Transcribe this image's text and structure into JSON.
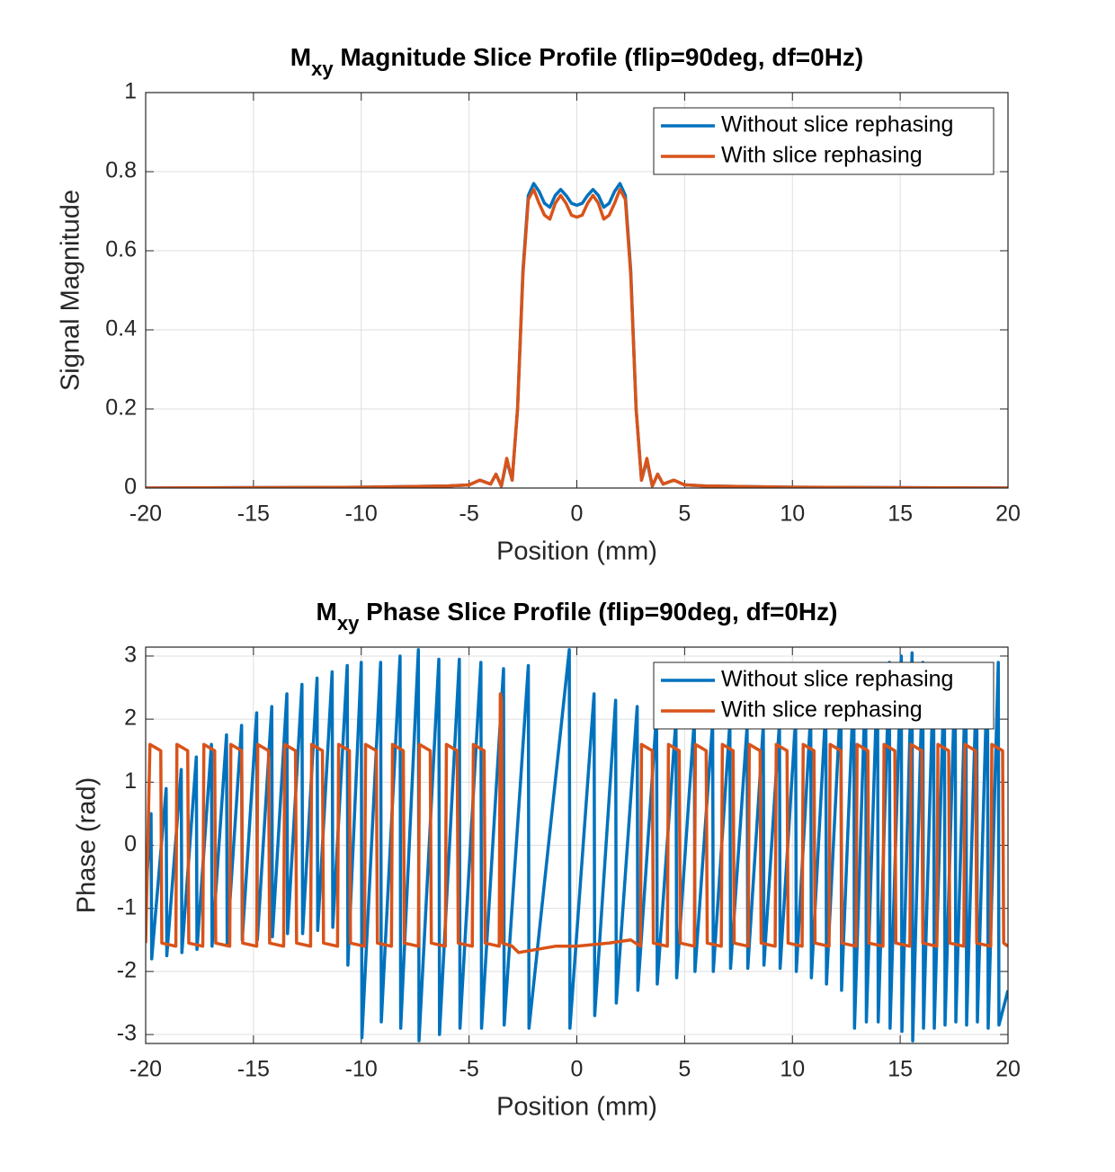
{
  "chart_data": [
    {
      "type": "line",
      "title": {
        "text": "M",
        "sub": "xy",
        "rest": " Magnitude Slice Profile (flip=90deg, df=0Hz)"
      },
      "x_label": "Position (mm)",
      "y_label": "Signal Magnitude",
      "xlim": [
        -20,
        20
      ],
      "ylim": [
        0,
        1
      ],
      "xticks": [
        -20,
        -15,
        -10,
        -5,
        0,
        5,
        10,
        15,
        20
      ],
      "yticks": [
        0,
        0.2,
        0.4,
        0.6,
        0.8,
        1
      ],
      "grid": true,
      "legend": "northeast",
      "x": [
        -20,
        -10,
        -6,
        -5,
        -4.5,
        -4,
        -3.75,
        -3.5,
        -3.25,
        -3,
        -2.75,
        -2.5,
        -2.25,
        -2,
        -1.75,
        -1.5,
        -1.25,
        -1,
        -0.75,
        -0.5,
        -0.25,
        0,
        0.25,
        0.5,
        0.75,
        1,
        1.25,
        1.5,
        1.75,
        2,
        2.25,
        2.5,
        2.75,
        3,
        3.25,
        3.5,
        3.75,
        4,
        4.5,
        5,
        6,
        10,
        20
      ],
      "series": [
        {
          "name": "Without slice rephasing",
          "color": "#0072bd",
          "values": [
            0,
            0.002,
            0.005,
            0.008,
            0.02,
            0.01,
            0.035,
            0.005,
            0.07,
            0.02,
            0.2,
            0.55,
            0.74,
            0.77,
            0.75,
            0.72,
            0.71,
            0.74,
            0.755,
            0.74,
            0.72,
            0.715,
            0.72,
            0.74,
            0.755,
            0.74,
            0.71,
            0.72,
            0.75,
            0.77,
            0.74,
            0.55,
            0.2,
            0.02,
            0.07,
            0.005,
            0.035,
            0.01,
            0.02,
            0.008,
            0.005,
            0.002,
            0
          ]
        },
        {
          "name": "With slice rephasing",
          "color": "#d95319",
          "values": [
            0,
            0.002,
            0.005,
            0.008,
            0.02,
            0.01,
            0.035,
            0.005,
            0.075,
            0.02,
            0.2,
            0.54,
            0.73,
            0.755,
            0.72,
            0.69,
            0.68,
            0.72,
            0.74,
            0.72,
            0.69,
            0.685,
            0.69,
            0.72,
            0.74,
            0.72,
            0.68,
            0.69,
            0.72,
            0.755,
            0.73,
            0.54,
            0.2,
            0.02,
            0.075,
            0.005,
            0.035,
            0.01,
            0.02,
            0.008,
            0.005,
            0.002,
            0
          ]
        }
      ]
    },
    {
      "type": "line",
      "title": {
        "text": "M",
        "sub": "xy",
        "rest": " Phase Slice Profile (flip=90deg, df=0Hz)"
      },
      "x_label": "Position (mm)",
      "y_label": "Phase (rad)",
      "xlim": [
        -20,
        20
      ],
      "ylim": [
        -3.1416,
        3.1416
      ],
      "xticks": [
        -20,
        -15,
        -10,
        -5,
        0,
        5,
        10,
        15,
        20
      ],
      "yticks": [
        -3,
        -2,
        -1,
        0,
        1,
        2,
        3
      ],
      "grid": true,
      "legend": "northeast",
      "series": [
        {
          "name": "Without slice rephasing",
          "color": "#0072bd",
          "x": [
            -20,
            -19.75,
            -19.72,
            -19.05,
            -19.02,
            -18.35,
            -18.32,
            -17.65,
            -17.62,
            -16.95,
            -16.92,
            -16.25,
            -16.22,
            -15.55,
            -15.52,
            -14.85,
            -14.82,
            -14.15,
            -14.12,
            -13.45,
            -13.42,
            -12.75,
            -12.72,
            -12.05,
            -12.02,
            -11.35,
            -11.32,
            -10.65,
            -10.62,
            -10,
            -9.97,
            -9.1,
            -9.07,
            -8.2,
            -8.17,
            -7.35,
            -7.32,
            -6.4,
            -6.37,
            -5.45,
            -5.42,
            -4.45,
            -4.42,
            -3.4,
            -3.37,
            -2.25,
            -2.22,
            -0.35,
            -0.32,
            0.8,
            0.83,
            1.8,
            1.83,
            2.8,
            2.83,
            3.7,
            3.73,
            4.6,
            4.63,
            5.45,
            5.48,
            6.3,
            6.33,
            7.1,
            7.13,
            7.9,
            7.93,
            8.65,
            8.68,
            9.4,
            9.43,
            10.15,
            10.18,
            10.85,
            10.88,
            11.55,
            11.58,
            12.25,
            12.28,
            12.85,
            12.88,
            13.4,
            13.43,
            13.95,
            13.98,
            14.5,
            14.53,
            15.05,
            15.08,
            15.55,
            15.58,
            16.05,
            16.08,
            16.55,
            16.58,
            17.05,
            17.08,
            17.55,
            17.58,
            18.05,
            18.08,
            18.55,
            18.58,
            19.05,
            19.08,
            19.55,
            19.58,
            20
          ],
          "values": [
            -0.8,
            0.5,
            -1.8,
            0.9,
            -1.75,
            1.2,
            -1.7,
            1.4,
            -1.65,
            1.6,
            -1.6,
            1.75,
            -1.55,
            1.9,
            -1.5,
            2.1,
            -1.5,
            2.2,
            -1.45,
            2.4,
            -1.4,
            2.55,
            -1.4,
            2.65,
            -1.35,
            2.75,
            -1.3,
            2.85,
            -1.9,
            2.9,
            -3.05,
            2.9,
            -2.8,
            3.0,
            -2.9,
            3.1,
            -3.1,
            2.95,
            -3.0,
            2.95,
            -2.9,
            2.9,
            -2.9,
            2.8,
            -2.85,
            2.85,
            -2.9,
            3.1,
            -2.9,
            2.4,
            -2.7,
            2.3,
            -2.5,
            2.2,
            -2.3,
            2.1,
            -2.2,
            2.0,
            -2.1,
            2.0,
            -2.0,
            1.95,
            -2.0,
            1.95,
            -1.95,
            1.9,
            -1.95,
            1.9,
            -1.9,
            1.95,
            -1.95,
            2.0,
            -2.0,
            2.1,
            -2.1,
            2.2,
            -2.2,
            2.4,
            -2.3,
            2.6,
            -2.9,
            2.7,
            -2.8,
            2.8,
            -2.8,
            2.9,
            -2.9,
            3.0,
            -2.95,
            3.05,
            -3.1,
            2.9,
            -2.9,
            2.85,
            -2.9,
            2.8,
            -2.85,
            2.8,
            -2.8,
            2.85,
            -2.85,
            2.8,
            -2.8,
            2.85,
            -2.9,
            2.9,
            -2.85,
            -2.3
          ]
        },
        {
          "name": "With slice rephasing",
          "color": "#d95319",
          "x": [
            -20,
            -19.8,
            -19.3,
            -19.25,
            -18.6,
            -18.55,
            -18.05,
            -18,
            -17.35,
            -17.3,
            -16.8,
            -16.75,
            -16.1,
            -16.05,
            -15.55,
            -15.5,
            -14.85,
            -14.8,
            -14.3,
            -14.25,
            -13.6,
            -13.55,
            -13.05,
            -13,
            -12.35,
            -12.3,
            -11.8,
            -11.75,
            -11.1,
            -11.05,
            -10.55,
            -10.5,
            -9.85,
            -9.8,
            -9.3,
            -9.25,
            -8.6,
            -8.55,
            -8.05,
            -8,
            -7.35,
            -7.3,
            -6.8,
            -6.75,
            -6.1,
            -6.05,
            -5.55,
            -5.5,
            -4.85,
            -4.8,
            -4.3,
            -4.25,
            -3.6,
            -3.55,
            -3.5,
            -3.45,
            -3,
            -2.7,
            -1,
            0,
            1.5,
            2.5,
            2.95,
            3,
            3.5,
            3.55,
            4.2,
            4.25,
            4.75,
            4.8,
            5.45,
            5.5,
            6,
            6.05,
            6.7,
            6.75,
            7.25,
            7.3,
            7.95,
            8,
            8.5,
            8.55,
            9.2,
            9.25,
            9.75,
            9.8,
            10.45,
            10.5,
            11,
            11.05,
            11.7,
            11.75,
            12.25,
            12.3,
            12.95,
            13,
            13.5,
            13.55,
            14.2,
            14.25,
            14.75,
            14.8,
            15.45,
            15.5,
            16,
            16.05,
            16.7,
            16.75,
            17.25,
            17.3,
            17.95,
            18,
            18.5,
            18.55,
            19.2,
            19.25,
            19.75,
            19.8,
            20
          ],
          "values": [
            -1.55,
            1.6,
            1.5,
            -1.55,
            -1.6,
            1.6,
            1.5,
            -1.55,
            -1.6,
            1.6,
            1.5,
            -1.55,
            -1.6,
            1.6,
            1.5,
            -1.55,
            -1.6,
            1.6,
            1.5,
            -1.55,
            -1.6,
            1.6,
            1.5,
            -1.55,
            -1.6,
            1.6,
            1.5,
            -1.55,
            -1.6,
            1.6,
            1.5,
            -1.55,
            -1.6,
            1.6,
            1.5,
            -1.55,
            -1.6,
            1.6,
            1.5,
            -1.55,
            -1.6,
            1.6,
            1.5,
            -1.55,
            -1.6,
            1.6,
            1.5,
            -1.55,
            -1.6,
            1.6,
            1.5,
            -1.55,
            -1.6,
            2.4,
            2.3,
            -1.55,
            -1.6,
            -1.7,
            -1.6,
            -1.6,
            -1.55,
            -1.5,
            -1.6,
            1.6,
            1.5,
            -1.55,
            -1.6,
            1.6,
            1.5,
            -1.55,
            -1.6,
            1.6,
            1.5,
            -1.55,
            -1.6,
            1.6,
            1.5,
            -1.55,
            -1.6,
            1.6,
            1.5,
            -1.55,
            -1.6,
            1.6,
            1.5,
            -1.55,
            -1.6,
            1.6,
            1.5,
            -1.55,
            -1.6,
            1.6,
            1.5,
            -1.55,
            -1.6,
            1.6,
            1.5,
            -1.55,
            -1.6,
            1.6,
            1.5,
            -1.55,
            -1.6,
            1.6,
            1.5,
            -1.55,
            -1.6,
            1.6,
            1.5,
            -1.55,
            -1.6,
            1.6,
            1.5,
            -1.55,
            -1.6,
            1.6,
            1.5,
            -1.55,
            -1.6
          ]
        }
      ]
    }
  ]
}
